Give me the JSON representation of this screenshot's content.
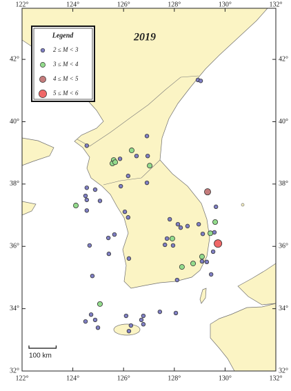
{
  "map": {
    "title": "2019",
    "lonlim": [
      122,
      132
    ],
    "latlim": [
      32,
      43.64
    ],
    "lon_ticks": [
      {
        "value": 122,
        "label": "122°"
      },
      {
        "value": 124,
        "label": "124°"
      },
      {
        "value": 126,
        "label": "126°"
      },
      {
        "value": 128,
        "label": "128°"
      },
      {
        "value": 130,
        "label": "130°"
      },
      {
        "value": 132,
        "label": "132°"
      }
    ],
    "lat_ticks": [
      {
        "value": 32,
        "label": "32°"
      },
      {
        "value": 34,
        "label": "34°"
      },
      {
        "value": 36,
        "label": "36°"
      },
      {
        "value": 38,
        "label": "38°"
      },
      {
        "value": 40,
        "label": "40°"
      },
      {
        "value": 42,
        "label": "42°"
      }
    ],
    "legend": {
      "title": "Legend",
      "entries": [
        {
          "label": "2 ≤ M < 3",
          "color": "#7f7fc4"
        },
        {
          "label": "3 ≤ M < 4",
          "color": "#93db8c"
        },
        {
          "label": "4 ≤ M < 5",
          "color": "#c47c7c"
        },
        {
          "label": "5 ≤ M < 6",
          "color": "#f06868"
        }
      ]
    },
    "scale_bar": {
      "km": 100,
      "label": "100 km"
    },
    "events": {
      "lon": [
        128.93,
        129.04,
        124.55,
        126.92,
        125.61,
        126.32,
        126.95,
        126.51,
        125.86,
        125.56,
        125.67,
        127.03,
        124.55,
        124.5,
        124.88,
        125.89,
        126.92,
        126.18,
        124.12,
        124.55,
        125.07,
        124.55,
        126.05,
        126.18,
        125.64,
        125.4,
        127.82,
        128.14,
        128.25,
        128.52,
        128.96,
        129.12,
        129.64,
        129.31,
        129.61,
        129.58,
        129.42,
        129.72,
        129.53,
        129.28,
        129.09,
        128.74,
        128.3,
        127.92,
        127.71,
        127.63,
        127.95,
        126.21,
        125.42,
        124.66,
        124.77,
        128.11,
        129.45,
        129.09,
        125.07,
        124.72,
        124.5,
        124.99,
        126.1,
        126.29,
        126.7,
        126.78,
        126.78,
        126.21,
        127.43,
        128.06,
        124.88
      ],
      "lat": [
        41.34,
        41.31,
        39.23,
        39.54,
        38.77,
        39.08,
        38.9,
        38.9,
        38.81,
        38.66,
        38.7,
        38.59,
        37.88,
        37.62,
        37.82,
        37.93,
        38.04,
        38.26,
        37.31,
        37.49,
        37.46,
        37.15,
        37.11,
        36.93,
        36.38,
        36.27,
        36.87,
        36.71,
        36.6,
        36.65,
        36.71,
        36.4,
        37.27,
        37.75,
        36.78,
        36.45,
        36.42,
        36.09,
        35.83,
        35.5,
        35.67,
        35.45,
        35.34,
        36.25,
        36.25,
        36.05,
        36.03,
        35.61,
        35.76,
        36.03,
        35.05,
        34.92,
        35.1,
        35.52,
        34.15,
        33.81,
        33.59,
        33.39,
        33.77,
        33.46,
        33.64,
        33.77,
        33.5,
        33.28,
        33.9,
        33.86,
        33.64
      ],
      "class": [
        0,
        0,
        0,
        0,
        1,
        1,
        0,
        0,
        0,
        1,
        1,
        1,
        0,
        0,
        0,
        0,
        0,
        0,
        1,
        0,
        0,
        0,
        0,
        0,
        0,
        0,
        0,
        0,
        0,
        0,
        0,
        0,
        0,
        2,
        1,
        0,
        1,
        3,
        0,
        0,
        1,
        1,
        1,
        1,
        0,
        0,
        0,
        0,
        0,
        0,
        0,
        0,
        0,
        0,
        1,
        0,
        0,
        0,
        0,
        0,
        0,
        0,
        0,
        0,
        0,
        0,
        0
      ]
    }
  }
}
